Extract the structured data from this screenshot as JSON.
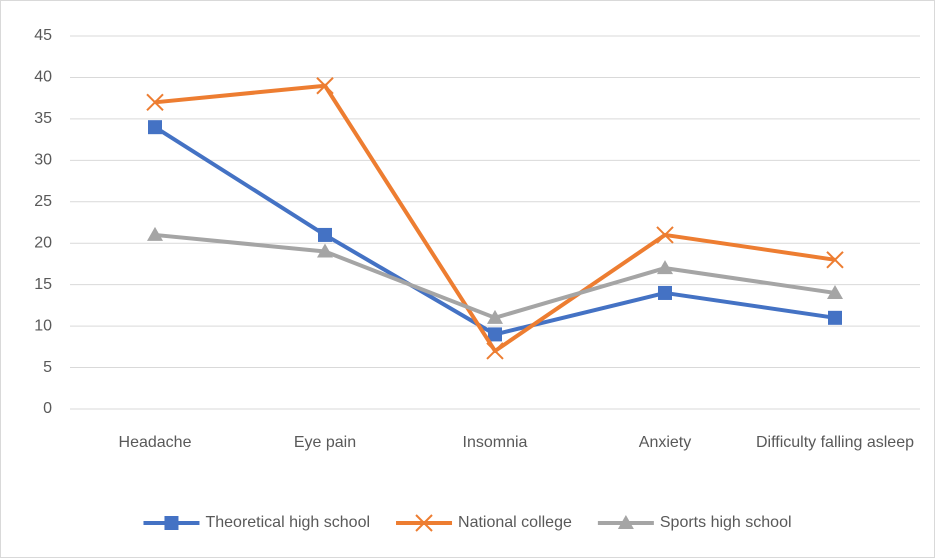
{
  "chart_data": {
    "type": "line",
    "categories": [
      "Headache",
      "Eye pain",
      "Insomnia",
      "Anxiety",
      "Difficulty falling asleep"
    ],
    "series": [
      {
        "name": "Theoretical high school",
        "color": "#4472c4",
        "marker": "square",
        "values": [
          34,
          21,
          9,
          14,
          11
        ]
      },
      {
        "name": "National college",
        "color": "#ed7d31",
        "marker": "x",
        "values": [
          37,
          39,
          7,
          21,
          18
        ]
      },
      {
        "name": "Sports high school",
        "color": "#a5a5a5",
        "marker": "triangle",
        "values": [
          21,
          19,
          11,
          17,
          14
        ]
      }
    ],
    "ylim": [
      0,
      45
    ],
    "yticks": [
      0,
      5,
      10,
      15,
      20,
      25,
      30,
      35,
      40,
      45
    ],
    "grid": true,
    "legend": "bottom"
  }
}
